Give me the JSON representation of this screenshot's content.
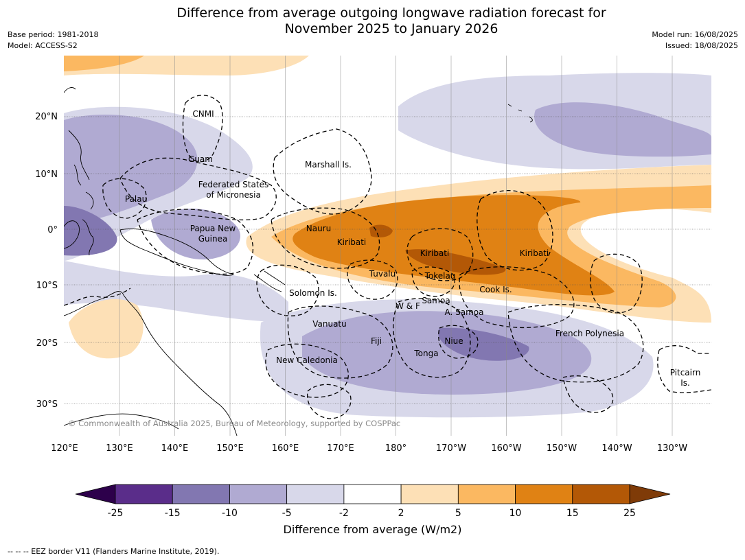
{
  "header": {
    "title_line1": "Difference from average outgoing longwave radiation forecast for",
    "title_line2": "November 2025 to January 2026",
    "base_period": "Base period: 1981-2018",
    "model": "Model: ACCESS-S2",
    "model_run": "Model run: 16/08/2025",
    "issued": "Issued: 18/08/2025"
  },
  "map": {
    "lat_ticks": [
      "20°N",
      "10°N",
      "0°",
      "10°S",
      "20°S",
      "30°S"
    ],
    "lon_ticks": [
      "120°E",
      "130°E",
      "140°E",
      "150°E",
      "160°E",
      "170°E",
      "180°",
      "170°W",
      "160°W",
      "150°W",
      "140°W",
      "130°W"
    ],
    "places": {
      "cnmi": "CNMI",
      "guam": "Guam",
      "marshall": "Marshall Is.",
      "fsm_1": "Federated States",
      "fsm_2": "of Micronesia",
      "palau": "Palau",
      "png_1": "Papua New",
      "png_2": "Guinea",
      "nauru": "Nauru",
      "kiribati_w": "Kiribati",
      "kiribati_c": "Kiribati",
      "kiribati_e": "Kiribati",
      "tuvalu": "Tuvalu",
      "tokelau": "Tokelau",
      "cook": "Cook Is.",
      "solomon": "Solomon Is.",
      "wf": "W & F",
      "samoa": "Samoa",
      "asamoa": "A. Samoa",
      "vanuatu": "Vanuatu",
      "fiji": "Fiji",
      "niue": "Niue",
      "tonga": "Tonga",
      "newcal": "New Caledonia",
      "frpoly": "French Polynesia",
      "pitcairn_1": "Pitcairn",
      "pitcairn_2": "Is."
    },
    "copyright": "© Commonwealth of Australia 2025, Bureau of Meteorology, supported by COSPPac",
    "colors": {
      "p1": "#d8d8ea",
      "p2": "#b0aad2",
      "p3": "#8277b1",
      "p4": "#5a2d8a",
      "p5": "#2d004b",
      "o1": "#fde0b6",
      "o2": "#fbb861",
      "o3": "#e08214",
      "o4": "#b35806",
      "o5": "#7f3b08"
    }
  },
  "colorbar": {
    "labels": [
      "-25",
      "-15",
      "-10",
      "-5",
      "-2",
      "2",
      "5",
      "10",
      "15",
      "25"
    ],
    "colors": [
      "#5a2d8a",
      "#8277b1",
      "#b0aad2",
      "#d8d8ea",
      "#ffffff",
      "#fde0b6",
      "#fbb861",
      "#e08214",
      "#b35806"
    ],
    "extend_low_color": "#2d004b",
    "extend_high_color": "#7f3b08",
    "title": "Difference from average (W/m2)"
  },
  "footnote": "--  --  -- EEZ border V11 (Flanders Marine Institute, 2019)."
}
